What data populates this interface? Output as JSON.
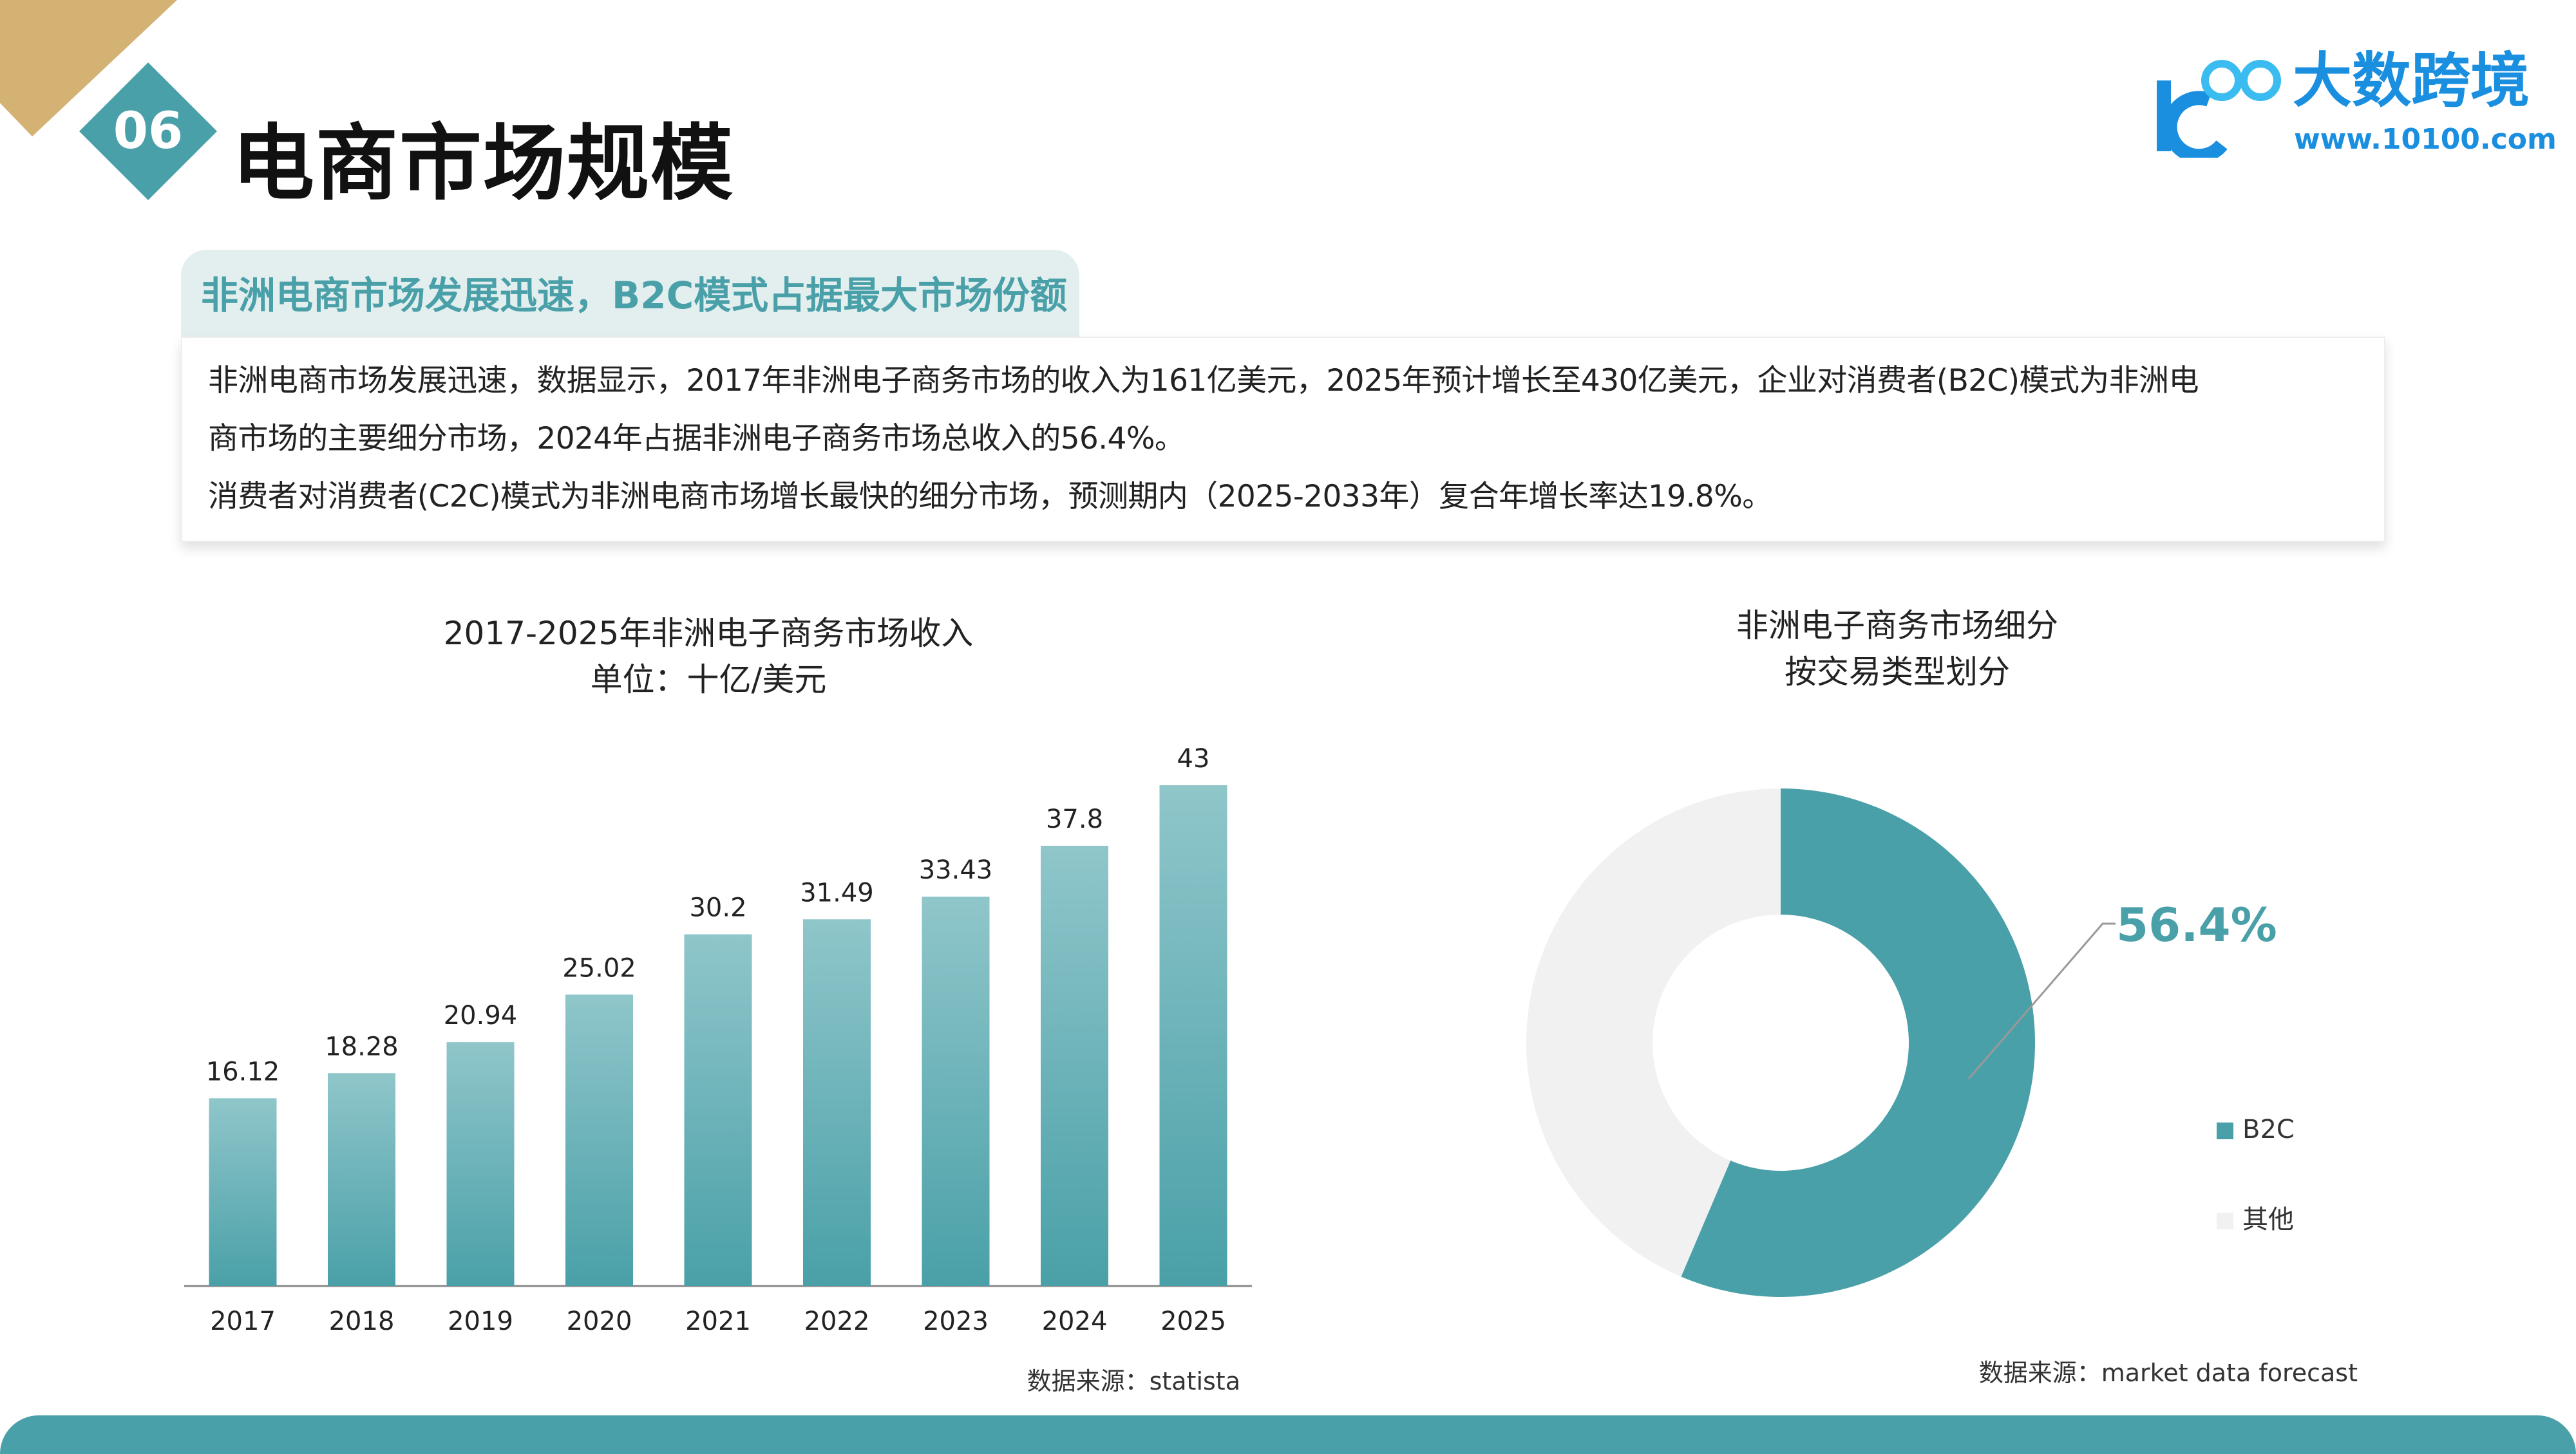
{
  "header": {
    "section_number": "06",
    "title": "电商市场规模"
  },
  "logo": {
    "name": "大数跨境",
    "url": "www.10100.com",
    "mark": "100"
  },
  "summary": {
    "heading": "非洲电商市场发展迅速，B2C模式占据最大市场份额",
    "lines": [
      "非洲电商市场发展迅速，数据显示，2017年非洲电子商务市场的收入为161亿美元，2025年预计增长至430亿美元，企业对消费者(B2C)模式为非洲电",
      "商市场的主要细分市场，2024年占据非洲电子商务市场总收入的56.4%。",
      "消费者对消费者(C2C)模式为非洲电商市场增长最快的细分市场，预测期内（2025-2033年）复合年增长率达19.8%。"
    ]
  },
  "colors": {
    "teal": "#4aa0a8",
    "teal_light": "#8fc6ca",
    "gold": "#d4b274",
    "other": "#f1f1f1"
  },
  "chart_data": [
    {
      "type": "bar",
      "title": "2017-2025年非洲电子商务市场收入",
      "subtitle": "单位：十亿/美元",
      "categories": [
        "2017",
        "2018",
        "2019",
        "2020",
        "2021",
        "2022",
        "2023",
        "2024",
        "2025"
      ],
      "values": [
        16.12,
        18.28,
        20.94,
        25.02,
        30.2,
        31.49,
        33.43,
        37.8,
        43
      ],
      "labels": [
        "16.12",
        "18.28",
        "20.94",
        "25.02",
        "30.2",
        "31.49",
        "33.43",
        "37.8",
        "43"
      ],
      "ylim": [
        0,
        43
      ],
      "source": "数据来源：statista"
    },
    {
      "type": "pie",
      "title": "非洲电子商务市场细分",
      "subtitle": "按交易类型划分",
      "slices": [
        {
          "name": "B2C",
          "value": 56.4
        },
        {
          "name": "其他",
          "value": 43.6
        }
      ],
      "label": "56.4%",
      "source": "数据来源：market data forecast"
    }
  ]
}
